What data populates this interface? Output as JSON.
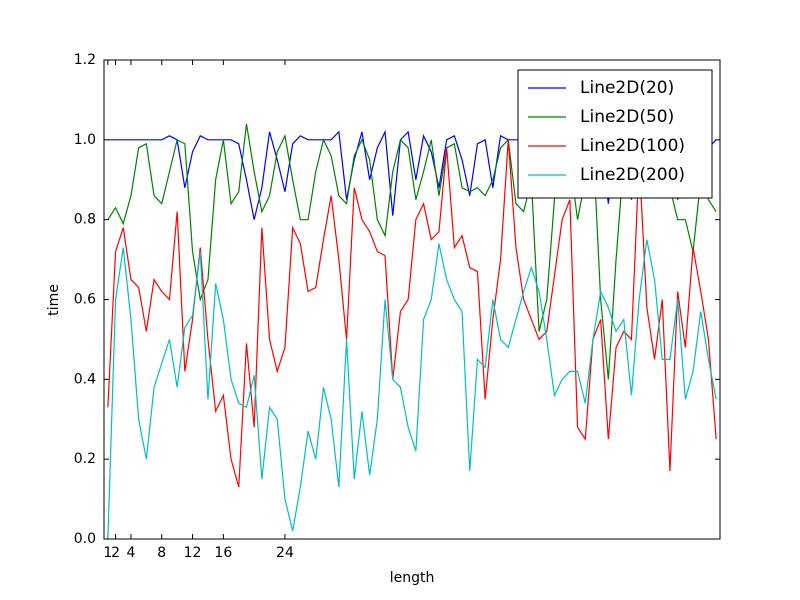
{
  "chart_data": {
    "type": "line",
    "xlabel": "length",
    "ylabel": "time",
    "x": [
      1,
      2,
      3,
      4,
      5,
      6,
      7,
      8,
      9,
      10,
      11,
      12,
      13,
      14,
      15,
      16,
      17,
      18,
      19,
      20,
      21,
      22,
      23,
      24,
      25,
      26,
      27,
      28,
      29,
      30,
      31,
      32,
      33,
      34,
      35,
      36,
      37,
      38,
      39,
      40,
      41,
      42,
      43,
      44,
      45,
      46,
      47,
      48,
      49,
      50,
      51,
      52,
      53,
      54,
      55,
      56,
      57,
      58,
      59,
      60,
      61,
      62,
      63,
      64,
      65,
      66,
      67,
      68,
      69,
      70,
      71,
      72,
      73,
      74,
      75,
      76,
      77,
      78,
      79,
      80
    ],
    "xlim": [
      0.5,
      80.5
    ],
    "xticks": [
      1,
      2,
      4,
      8,
      12,
      16,
      24
    ],
    "ylim": [
      0,
      1.2
    ],
    "yticks": [
      {
        "value": 0,
        "label": "0.0"
      },
      {
        "value": 0.2,
        "label": "0.2"
      },
      {
        "value": 0.4,
        "label": "0.4"
      },
      {
        "value": 0.6,
        "label": "0.6"
      },
      {
        "value": 0.8,
        "label": "0.8"
      },
      {
        "value": 1,
        "label": "1.0"
      },
      {
        "value": 1.2,
        "label": "1.2"
      }
    ],
    "legend": "upper right",
    "series": [
      {
        "name": "Line2D(20)",
        "color": "#0000ff",
        "values": [
          1.0,
          1.0,
          1.0,
          1.0,
          1.0,
          1.0,
          1.0,
          1.0,
          1.01,
          1.0,
          0.88,
          0.97,
          1.01,
          1.0,
          1.0,
          1.0,
          1.0,
          0.99,
          0.9,
          0.8,
          0.88,
          1.02,
          0.95,
          0.87,
          0.99,
          1.01,
          1.0,
          1.0,
          1.0,
          1.0,
          1.02,
          0.85,
          0.95,
          1.02,
          0.9,
          0.98,
          1.02,
          0.81,
          1.0,
          1.02,
          0.9,
          1.01,
          0.97,
          0.88,
          1.0,
          1.01,
          0.95,
          0.86,
          0.99,
          1.0,
          0.88,
          1.01,
          1.0,
          1.0,
          1.0,
          1.0,
          1.0,
          1.0,
          1.0,
          1.0,
          1.0,
          1.0,
          1.0,
          1.0,
          1.0,
          0.84,
          1.0,
          0.99,
          0.85,
          1.0,
          1.0,
          1.0,
          1.0,
          1.0,
          0.85,
          1.0,
          1.0,
          0.99,
          0.98,
          1.0
        ]
      },
      {
        "name": "Line2D(50)",
        "color": "#008000",
        "values": [
          0.8,
          0.83,
          0.79,
          0.86,
          0.98,
          0.99,
          0.86,
          0.84,
          0.92,
          1.0,
          0.99,
          0.72,
          0.6,
          0.65,
          0.9,
          1.0,
          0.84,
          0.87,
          1.04,
          0.92,
          0.82,
          0.86,
          0.97,
          1.01,
          0.9,
          0.8,
          0.8,
          0.92,
          1.0,
          0.96,
          0.86,
          0.84,
          0.96,
          1.0,
          0.95,
          0.8,
          0.76,
          0.92,
          1.0,
          0.98,
          0.85,
          0.92,
          1.0,
          0.86,
          0.98,
          0.99,
          0.88,
          0.87,
          0.88,
          0.86,
          0.9,
          0.98,
          1.0,
          0.84,
          0.82,
          0.9,
          0.52,
          0.6,
          0.85,
          1.0,
          0.95,
          0.8,
          0.9,
          1.0,
          0.6,
          0.4,
          0.7,
          0.95,
          1.0,
          0.9,
          0.95,
          1.0,
          0.96,
          0.88,
          0.8,
          0.8,
          0.72,
          0.9,
          0.85,
          0.82
        ]
      },
      {
        "name": "Line2D(100)",
        "color": "#ff0000",
        "values": [
          0.33,
          0.72,
          0.78,
          0.65,
          0.63,
          0.52,
          0.65,
          0.62,
          0.6,
          0.82,
          0.42,
          0.55,
          0.73,
          0.5,
          0.32,
          0.36,
          0.2,
          0.13,
          0.49,
          0.28,
          0.78,
          0.5,
          0.42,
          0.48,
          0.78,
          0.74,
          0.62,
          0.63,
          0.75,
          0.86,
          0.7,
          0.5,
          0.88,
          0.8,
          0.77,
          0.72,
          0.71,
          0.4,
          0.57,
          0.6,
          0.8,
          0.84,
          0.75,
          0.77,
          0.98,
          0.73,
          0.76,
          0.68,
          0.67,
          0.35,
          0.55,
          0.7,
          1.0,
          0.73,
          0.6,
          0.55,
          0.5,
          0.52,
          0.66,
          0.8,
          0.85,
          0.28,
          0.25,
          0.5,
          0.55,
          0.25,
          0.48,
          0.52,
          0.5,
          0.95,
          0.58,
          0.45,
          0.6,
          0.17,
          0.62,
          0.48,
          0.73,
          0.62,
          0.5,
          0.25
        ]
      },
      {
        "name": "Line2D(200)",
        "color": "#00bfbf",
        "values": [
          0.0,
          0.6,
          0.73,
          0.55,
          0.3,
          0.2,
          0.38,
          0.44,
          0.5,
          0.38,
          0.53,
          0.56,
          0.72,
          0.35,
          0.64,
          0.55,
          0.4,
          0.34,
          0.33,
          0.41,
          0.15,
          0.33,
          0.3,
          0.1,
          0.02,
          0.13,
          0.27,
          0.2,
          0.38,
          0.3,
          0.13,
          0.5,
          0.15,
          0.32,
          0.16,
          0.3,
          0.6,
          0.4,
          0.38,
          0.28,
          0.22,
          0.55,
          0.6,
          0.74,
          0.65,
          0.6,
          0.57,
          0.17,
          0.45,
          0.43,
          0.6,
          0.5,
          0.48,
          0.55,
          0.62,
          0.68,
          0.62,
          0.5,
          0.36,
          0.4,
          0.42,
          0.42,
          0.34,
          0.5,
          0.62,
          0.58,
          0.52,
          0.55,
          0.36,
          0.6,
          0.75,
          0.65,
          0.45,
          0.45,
          0.6,
          0.35,
          0.42,
          0.57,
          0.45,
          0.35
        ]
      }
    ]
  }
}
